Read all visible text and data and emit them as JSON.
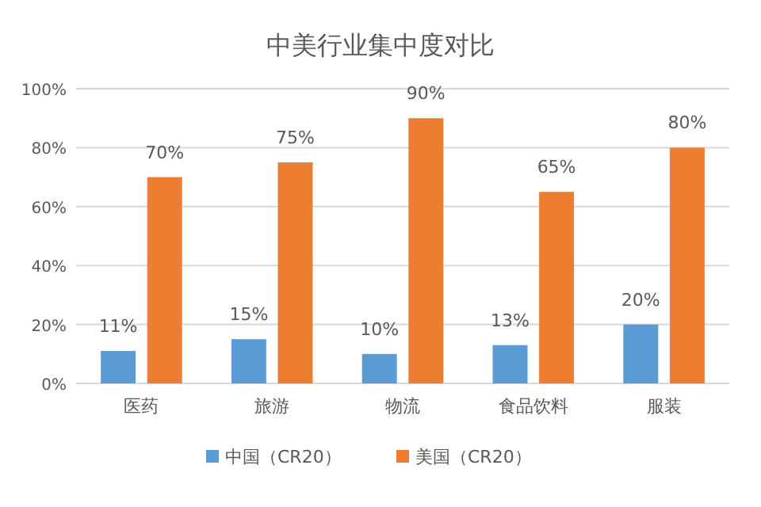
{
  "chart_data": {
    "type": "bar",
    "title": "中美行业集中度对比",
    "categories": [
      "医药",
      "旅游",
      "物流",
      "食品饮料",
      "服装"
    ],
    "series": [
      {
        "name": "中国（CR20）",
        "color": "#5b9bd5",
        "values": [
          11,
          15,
          10,
          13,
          20
        ]
      },
      {
        "name": "美国（CR20）",
        "color": "#ed7d31",
        "values": [
          70,
          75,
          90,
          65,
          80
        ]
      }
    ],
    "ylim": [
      0,
      100
    ],
    "yticks": [
      {
        "value": 0,
        "label": "0%"
      },
      {
        "value": 20,
        "label": "20%"
      },
      {
        "value": 40,
        "label": "40%"
      },
      {
        "value": 60,
        "label": "60%"
      },
      {
        "value": 80,
        "label": "80%"
      },
      {
        "value": 100,
        "label": "100%"
      }
    ],
    "value_labels": [
      [
        "11%",
        "15%",
        "10%",
        "13%",
        "20%"
      ],
      [
        "70%",
        "75%",
        "90%",
        "65%",
        "80%"
      ]
    ],
    "grid": "y",
    "legend": "bottom"
  }
}
